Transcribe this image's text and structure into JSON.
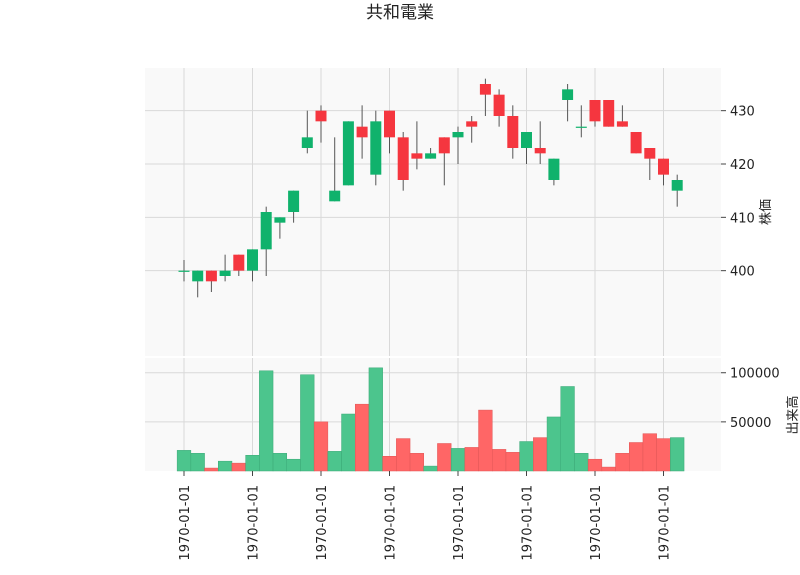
{
  "chart_data": {
    "type": "candlestick",
    "title": "共和電業",
    "price_ylabel": "株価",
    "volume_ylabel": "出来高",
    "price_ylim": [
      384,
      438
    ],
    "price_yticks": [
      400,
      410,
      420,
      430
    ],
    "volume_ylim": [
      0,
      115000
    ],
    "volume_yticks": [
      50000,
      100000
    ],
    "volume_ytick_labels": [
      "50000",
      "100000"
    ],
    "x_tick_labels": [
      "1970-01-01",
      "1970-01-01",
      "1970-01-01",
      "1970-01-01",
      "1970-01-01",
      "1970-01-01",
      "1970-01-01",
      "1970-01-01"
    ],
    "x_tick_indices": [
      0,
      5,
      10,
      15,
      20,
      25,
      30,
      35
    ],
    "up_color": "#10b26c",
    "down_color": "#f5363f",
    "up_volume_color": "#4cc58d",
    "down_volume_color": "#ff6666",
    "candles": [
      {
        "open": 400,
        "high": 402,
        "low": 398,
        "close": 400,
        "volume": 21000
      },
      {
        "open": 398,
        "high": 400,
        "low": 395,
        "close": 400,
        "volume": 18000
      },
      {
        "open": 400,
        "high": 400,
        "low": 396,
        "close": 398,
        "volume": 3000
      },
      {
        "open": 399,
        "high": 403,
        "low": 398,
        "close": 400,
        "volume": 10000
      },
      {
        "open": 403,
        "high": 403,
        "low": 399,
        "close": 400,
        "volume": 8000
      },
      {
        "open": 400,
        "high": 404,
        "low": 398,
        "close": 404,
        "volume": 16000
      },
      {
        "open": 404,
        "high": 412,
        "low": 399,
        "close": 411,
        "volume": 102000
      },
      {
        "open": 409,
        "high": 410,
        "low": 406,
        "close": 410,
        "volume": 18000
      },
      {
        "open": 411,
        "high": 415,
        "low": 409,
        "close": 415,
        "volume": 12000
      },
      {
        "open": 423,
        "high": 430,
        "low": 422,
        "close": 425,
        "volume": 98000
      },
      {
        "open": 430,
        "high": 431,
        "low": 424,
        "close": 428,
        "volume": 50000
      },
      {
        "open": 413,
        "high": 425,
        "low": 413,
        "close": 415,
        "volume": 20000
      },
      {
        "open": 416,
        "high": 428,
        "low": 416,
        "close": 428,
        "volume": 58000
      },
      {
        "open": 427,
        "high": 431,
        "low": 421,
        "close": 425,
        "volume": 68000
      },
      {
        "open": 418,
        "high": 430,
        "low": 416,
        "close": 428,
        "volume": 105000
      },
      {
        "open": 430,
        "high": 430,
        "low": 422,
        "close": 425,
        "volume": 15000
      },
      {
        "open": 425,
        "high": 426,
        "low": 415,
        "close": 417,
        "volume": 33000
      },
      {
        "open": 422,
        "high": 428,
        "low": 419,
        "close": 421,
        "volume": 18000
      },
      {
        "open": 421,
        "high": 423,
        "low": 421,
        "close": 422,
        "volume": 5000
      },
      {
        "open": 425,
        "high": 425,
        "low": 416,
        "close": 422,
        "volume": 28000
      },
      {
        "open": 425,
        "high": 427,
        "low": 420,
        "close": 426,
        "volume": 23000
      },
      {
        "open": 428,
        "high": 429,
        "low": 424,
        "close": 427,
        "volume": 24000
      },
      {
        "open": 435,
        "high": 436,
        "low": 429,
        "close": 433,
        "volume": 62000
      },
      {
        "open": 433,
        "high": 434,
        "low": 427,
        "close": 429,
        "volume": 22000
      },
      {
        "open": 429,
        "high": 431,
        "low": 421,
        "close": 423,
        "volume": 19000
      },
      {
        "open": 423,
        "high": 426,
        "low": 420,
        "close": 426,
        "volume": 30000
      },
      {
        "open": 423,
        "high": 428,
        "low": 420,
        "close": 422,
        "volume": 34000
      },
      {
        "open": 417,
        "high": 421,
        "low": 416,
        "close": 421,
        "volume": 55000
      },
      {
        "open": 432,
        "high": 435,
        "low": 428,
        "close": 434,
        "volume": 86000
      },
      {
        "open": 427,
        "high": 431,
        "low": 425,
        "close": 427,
        "volume": 18000
      },
      {
        "open": 432,
        "high": 432,
        "low": 427,
        "close": 428,
        "volume": 12000
      },
      {
        "open": 432,
        "high": 432,
        "low": 427,
        "close": 427,
        "volume": 4000
      },
      {
        "open": 428,
        "high": 431,
        "low": 427,
        "close": 427,
        "volume": 18000
      },
      {
        "open": 426,
        "high": 426,
        "low": 422,
        "close": 422,
        "volume": 29000
      },
      {
        "open": 423,
        "high": 423,
        "low": 417,
        "close": 421,
        "volume": 38000
      },
      {
        "open": 421,
        "high": 421,
        "low": 416,
        "close": 418,
        "volume": 33000
      },
      {
        "open": 415,
        "high": 418,
        "low": 412,
        "close": 417,
        "volume": 34000
      }
    ]
  }
}
